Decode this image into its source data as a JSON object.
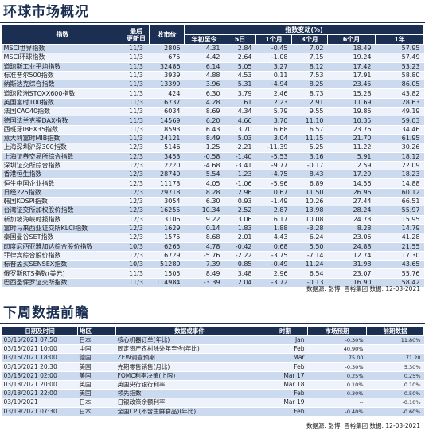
{
  "market": {
    "title": "环球市场概况",
    "headers": {
      "index": "指数",
      "date": "最后\n更新日",
      "close": "收市价",
      "change": "指数变动(%)",
      "ytd": "年初至今",
      "d5": "5日",
      "m1": "1个月",
      "m3": "3个月",
      "m6": "6个月",
      "y1": "1年"
    },
    "rows": [
      [
        "MSCI世界指数",
        "11/3",
        "2806",
        "4.31",
        "2.84",
        "-0.45",
        "7.02",
        "18.49",
        "57.95"
      ],
      [
        "MSCI环球指数",
        "11/3",
        "675",
        "4.42",
        "2.64",
        "-1.08",
        "7.15",
        "19.24",
        "57.49"
      ],
      [
        "道琼斯工业平均指数",
        "11/3",
        "32486",
        "6.14",
        "5.05",
        "3.27",
        "8.12",
        "17.42",
        "53.23"
      ],
      [
        "标准普尔500指数",
        "11/3",
        "3939",
        "4.88",
        "4.53",
        "0.11",
        "7.53",
        "17.91",
        "58.80"
      ],
      [
        "纳斯达克综合指数",
        "11/3",
        "13399",
        "3.96",
        "5.31",
        "-4.94",
        "8.25",
        "23.45",
        "86.05"
      ],
      [
        "道琼欧洲STOXX600指数",
        "11/3",
        "424",
        "6.30",
        "3.79",
        "2.46",
        "8.73",
        "15.28",
        "43.82"
      ],
      [
        "英国富时100指数",
        "11/3",
        "6737",
        "4.28",
        "1.61",
        "2.23",
        "2.91",
        "11.69",
        "28.63"
      ],
      [
        "法国CAC40指数",
        "11/3",
        "6034",
        "8.69",
        "4.34",
        "5.79",
        "9.55",
        "19.86",
        "49.19"
      ],
      [
        "德国法兰克福DAX指数",
        "11/3",
        "14569",
        "6.20",
        "4.66",
        "3.70",
        "11.10",
        "10.35",
        "59.03"
      ],
      [
        "西班牙IBEX35指数",
        "11/3",
        "8593",
        "6.43",
        "3.70",
        "6.68",
        "6.57",
        "23.76",
        "34.46"
      ],
      [
        "意大利富时MIB指数",
        "11/3",
        "24121",
        "8.49",
        "5.03",
        "3.04",
        "11.15",
        "21.70",
        "61.95"
      ],
      [
        "上海深圳沪深300指数",
        "12/3",
        "5146",
        "-1.25",
        "-2.21",
        "-11.39",
        "5.25",
        "11.22",
        "30.26"
      ],
      [
        "上海证券交易所综合指数",
        "12/3",
        "3453",
        "-0.58",
        "-1.40",
        "-5.53",
        "3.16",
        "5.91",
        "18.12"
      ],
      [
        "深圳证交所综合指数",
        "12/3",
        "2220",
        "-4.68",
        "-3.41",
        "-9.77",
        "-0.17",
        "2.59",
        "22.09"
      ],
      [
        "香港恒生指数",
        "12/3",
        "28740",
        "5.54",
        "-1.23",
        "-4.75",
        "8.43",
        "17.29",
        "18.23"
      ],
      [
        "恒生中国企业指数",
        "12/3",
        "11173",
        "4.05",
        "-1.06",
        "-5.96",
        "6.89",
        "14.56",
        "14.88"
      ],
      [
        "日经225指数",
        "12/3",
        "29718",
        "8.28",
        "2.96",
        "0.67",
        "11.50",
        "26.96",
        "60.12"
      ],
      [
        "韩国KOSPI指数",
        "12/3",
        "3054",
        "6.30",
        "0.93",
        "-1.49",
        "10.26",
        "27.44",
        "66.51"
      ],
      [
        "台湾证交所加权股价指数",
        "12/3",
        "16255",
        "10.34",
        "2.52",
        "2.87",
        "13.98",
        "28.24",
        "55.97"
      ],
      [
        "新加坡海峡时报指数",
        "12/3",
        "3106",
        "9.22",
        "3.06",
        "6.17",
        "10.08",
        "24.73",
        "15.95"
      ],
      [
        "富时马来西亚证交所KLCI指数",
        "12/3",
        "1629",
        "0.14",
        "1.83",
        "1.88",
        "-3.28",
        "8.28",
        "14.79"
      ],
      [
        "泰国曼谷SET指数",
        "12/3",
        "1575",
        "8.68",
        "2.01",
        "4.43",
        "6.24",
        "23.06",
        "41.28"
      ],
      [
        "印度尼西亚雅加达综合股价指数",
        "10/3",
        "6265",
        "4.78",
        "-0.42",
        "0.68",
        "5.50",
        "24.88",
        "21.55"
      ],
      [
        "菲律宾综合股价指数",
        "12/3",
        "6729",
        "-5.76",
        "-2.22",
        "-3.75",
        "-7.14",
        "12.74",
        "17.30"
      ],
      [
        "标普孟买SENSEX指数",
        "10/3",
        "51280",
        "7.39",
        "0.85",
        "-0.49",
        "11.24",
        "31.98",
        "43.65"
      ],
      [
        "俄罗斯RTS指数(美元)",
        "11/3",
        "1505",
        "8.49",
        "3.48",
        "2.96",
        "6.54",
        "23.07",
        "55.76"
      ],
      [
        "巴西圣保罗证交所指数",
        "11/3",
        "114984",
        "-3.39",
        "2.04",
        "-3.72",
        "-0.13",
        "16.90",
        "58.42"
      ]
    ],
    "source": "数据源: 彭博, 晋裕集团 数据:  12-03-2021"
  },
  "calendar": {
    "title": "下周数据前瞻",
    "headers": {
      "datetime": "日期及时间",
      "region": "地区",
      "event": "数据或事件",
      "period": "时期",
      "forecast": "市场预期",
      "previous": "前期数据"
    },
    "rows": [
      [
        "03/15/2021 07:50",
        "日本",
        "核心机器订单(年比)",
        "Jan",
        "-0.30%",
        "11.80%"
      ],
      [
        "03/15/2021 10:00",
        "中国",
        "固定资产农村除外年至今(年比)",
        "Feb",
        "40.90%",
        ""
      ],
      [
        "03/16/2021 18:00",
        "德国",
        "ZEW调查预期",
        "Mar",
        "75.00",
        "71.20"
      ],
      [
        "03/16/2021 20:30",
        "美国",
        "先期零售销售(月比)",
        "Feb",
        "-0.30%",
        "5.30%"
      ],
      [
        "03/18/2021 02:00",
        "美国",
        "FOMC利率决策(上限)",
        "Mar 17",
        "0.25%",
        "0.25%"
      ],
      [
        "03/18/2021 20:00",
        "英国",
        "英国央行银行利率",
        "Mar 18",
        "0.10%",
        "0.10%"
      ],
      [
        "03/18/2021 22:00",
        "美国",
        "领先指数",
        "Feb",
        "0.30%",
        "0.50%"
      ],
      [
        "03/19/2021",
        "日本",
        "日银政策余额利率",
        "Mar 19",
        "--",
        "-0.10%"
      ],
      [
        "03/19/2021 07:30",
        "日本",
        "全国CPI(不含生鲜食品)(年比)",
        "Feb",
        "-0.40%",
        "-0.60%"
      ]
    ],
    "source": "数据源: 彭博, 晋裕集团 数据:  12-03-2021"
  }
}
